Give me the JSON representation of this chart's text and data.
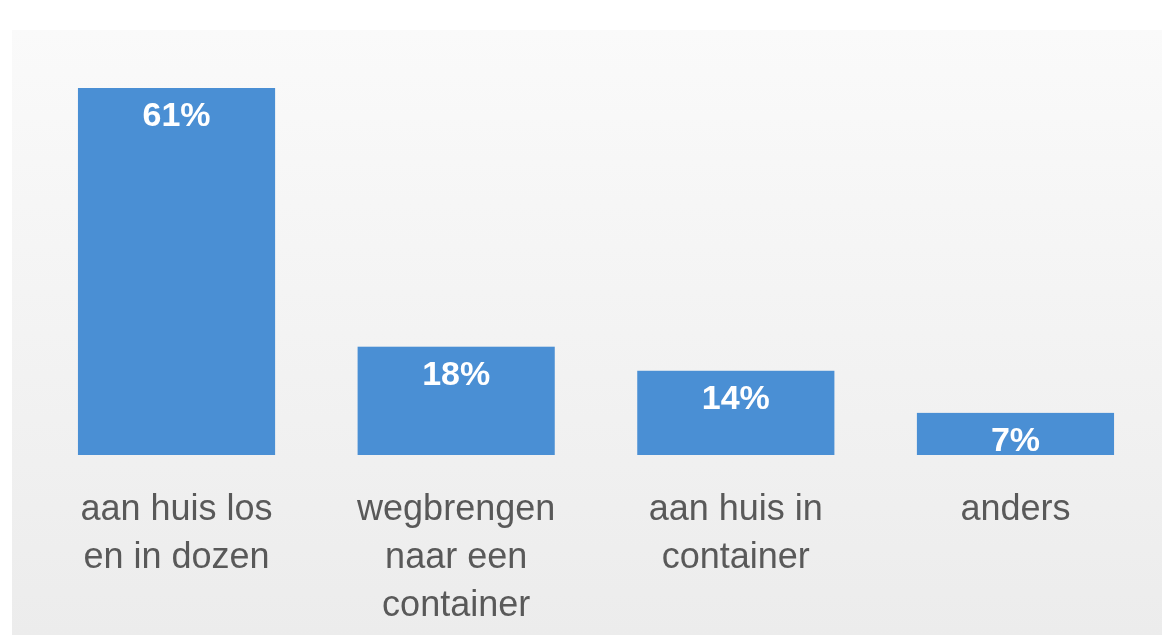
{
  "chart_data": {
    "type": "bar",
    "categories": [
      "aan huis los en in dozen",
      "wegbrengen naar een container",
      "aan huis in container",
      "anders"
    ],
    "values": [
      61,
      18,
      14,
      7
    ],
    "color": "#4a8fd4",
    "value_labels": [
      "61%",
      "18%",
      "14%",
      "7%"
    ]
  }
}
